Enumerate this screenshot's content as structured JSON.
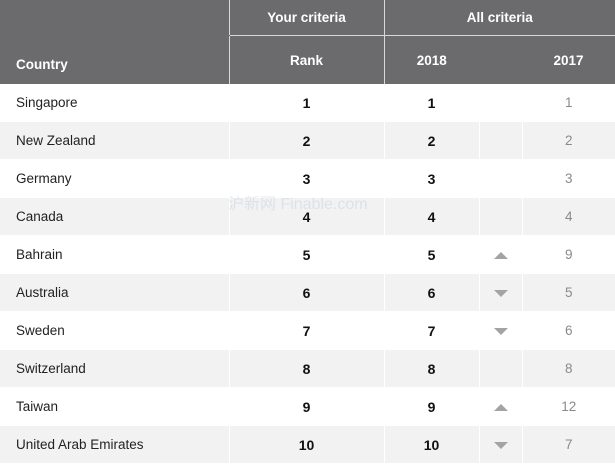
{
  "header": {
    "your_criteria": "Your criteria",
    "all_criteria": "All criteria",
    "country": "Country",
    "rank": "Rank",
    "year_current": "2018",
    "year_previous": "2017"
  },
  "rows": [
    {
      "country": "Singapore",
      "rank": "1",
      "rank_2018": "1",
      "trend": "none",
      "rank_2017": "1"
    },
    {
      "country": "New Zealand",
      "rank": "2",
      "rank_2018": "2",
      "trend": "none",
      "rank_2017": "2"
    },
    {
      "country": "Germany",
      "rank": "3",
      "rank_2018": "3",
      "trend": "none",
      "rank_2017": "3"
    },
    {
      "country": "Canada",
      "rank": "4",
      "rank_2018": "4",
      "trend": "none",
      "rank_2017": "4"
    },
    {
      "country": "Bahrain",
      "rank": "5",
      "rank_2018": "5",
      "trend": "up",
      "rank_2017": "9"
    },
    {
      "country": "Australia",
      "rank": "6",
      "rank_2018": "6",
      "trend": "down",
      "rank_2017": "5"
    },
    {
      "country": "Sweden",
      "rank": "7",
      "rank_2018": "7",
      "trend": "down",
      "rank_2017": "6"
    },
    {
      "country": "Switzerland",
      "rank": "8",
      "rank_2018": "8",
      "trend": "none",
      "rank_2017": "8"
    },
    {
      "country": "Taiwan",
      "rank": "9",
      "rank_2018": "9",
      "trend": "up",
      "rank_2017": "12"
    },
    {
      "country": "United Arab Emirates",
      "rank": "10",
      "rank_2018": "10",
      "trend": "down",
      "rank_2017": "7"
    }
  ],
  "colors": {
    "header_bg": "#6b6b6d",
    "row_alt_bg": "#f2f2f2",
    "arrow": "#a3a3a3",
    "prev_year_text": "#8a8a8a"
  },
  "watermark_text": "沪新网 Finable.com"
}
